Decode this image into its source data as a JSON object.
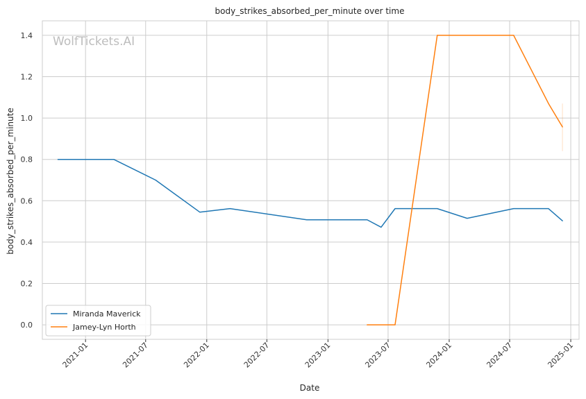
{
  "chart_data": {
    "type": "line",
    "title": "body_strikes_absorbed_per_minute over time",
    "xlabel": "Date",
    "ylabel": "body_strikes_absorbed_per_minute",
    "watermark": "WolfTickets.AI",
    "x_ticks": [
      "2021-01",
      "2021-07",
      "2022-01",
      "2022-07",
      "2023-01",
      "2023-07",
      "2024-01",
      "2024-07",
      "2025-01"
    ],
    "y_ticks": [
      "0.0",
      "0.2",
      "0.4",
      "0.6",
      "0.8",
      "1.0",
      "1.2",
      "1.4"
    ],
    "xlim": [
      "2020-08-24",
      "2025-01-26"
    ],
    "ylim": [
      -0.07,
      1.47
    ],
    "grid": true,
    "legend_position": "lower-left",
    "series": [
      {
        "name": "Miranda Maverick",
        "color": "#1f77b4",
        "points": [
          [
            "2020-10-10",
            0.8
          ],
          [
            "2021-03-27",
            0.8
          ],
          [
            "2021-07-31",
            0.7
          ],
          [
            "2021-12-11",
            0.545
          ],
          [
            "2022-03-12",
            0.562
          ],
          [
            "2022-10-29",
            0.508
          ],
          [
            "2023-04-29",
            0.508
          ],
          [
            "2023-06-10",
            0.472
          ],
          [
            "2023-07-22",
            0.562
          ],
          [
            "2023-11-26",
            0.562
          ],
          [
            "2024-02-24",
            0.515
          ],
          [
            "2024-07-13",
            0.562
          ],
          [
            "2024-10-26",
            0.562
          ],
          [
            "2024-12-07",
            0.503
          ]
        ]
      },
      {
        "name": "Jamey-Lyn Horth",
        "color": "#ff7f0e",
        "points": [
          [
            "2023-04-29",
            0.0
          ],
          [
            "2023-07-22",
            0.0
          ],
          [
            "2023-11-26",
            1.4
          ],
          [
            "2024-07-13",
            1.4
          ],
          [
            "2024-10-26",
            1.07
          ],
          [
            "2024-12-07",
            0.957
          ]
        ],
        "error_bar": {
          "x": "2024-12-07",
          "low": 0.84,
          "high": 1.07
        }
      }
    ]
  }
}
